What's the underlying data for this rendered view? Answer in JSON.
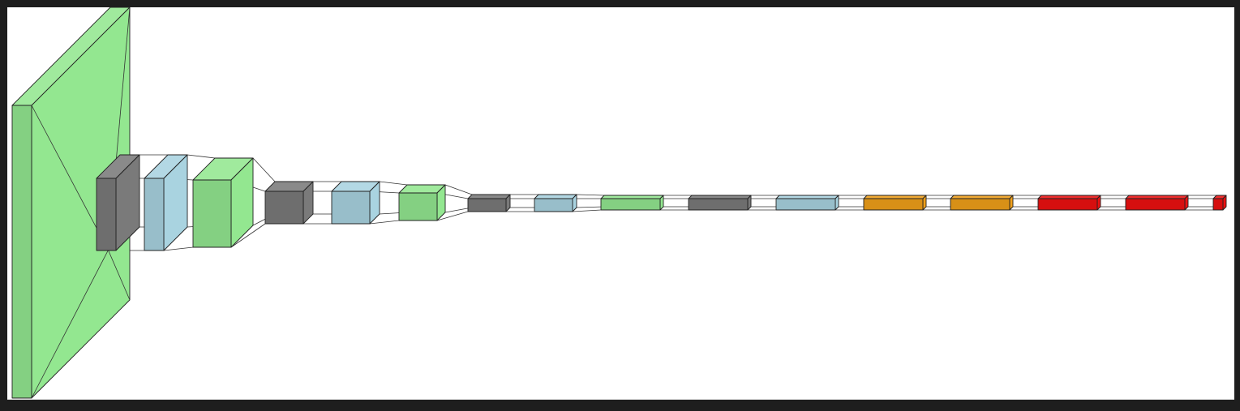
{
  "diagram": {
    "type": "layered-network-visualization",
    "background": "#ffffff",
    "frame_color": "#1e1e1e",
    "colors": {
      "green": "#93e790",
      "gray": "#7a7a7a",
      "blue": "#a9d3e0",
      "orange": "#f0a01a",
      "red": "#ee1111",
      "edge": "#222222",
      "connector": "#333333"
    },
    "layers": [
      {
        "index": 1,
        "color": "green",
        "shape": "large-prism"
      },
      {
        "index": 2,
        "color": "gray",
        "shape": "prism"
      },
      {
        "index": 3,
        "color": "blue",
        "shape": "prism"
      },
      {
        "index": 4,
        "color": "green",
        "shape": "prism"
      },
      {
        "index": 5,
        "color": "gray",
        "shape": "prism"
      },
      {
        "index": 6,
        "color": "blue",
        "shape": "prism"
      },
      {
        "index": 7,
        "color": "green",
        "shape": "prism"
      },
      {
        "index": 8,
        "color": "gray",
        "shape": "prism"
      },
      {
        "index": 9,
        "color": "blue",
        "shape": "prism"
      },
      {
        "index": 10,
        "color": "green",
        "shape": "flat-bar"
      },
      {
        "index": 11,
        "color": "gray",
        "shape": "flat-bar"
      },
      {
        "index": 12,
        "color": "blue",
        "shape": "flat-bar"
      },
      {
        "index": 13,
        "color": "orange",
        "shape": "flat-bar"
      },
      {
        "index": 14,
        "color": "orange",
        "shape": "flat-bar"
      },
      {
        "index": 15,
        "color": "red",
        "shape": "flat-bar"
      },
      {
        "index": 16,
        "color": "red",
        "shape": "flat-bar"
      },
      {
        "index": 17,
        "color": "red",
        "shape": "small-cube"
      }
    ]
  }
}
